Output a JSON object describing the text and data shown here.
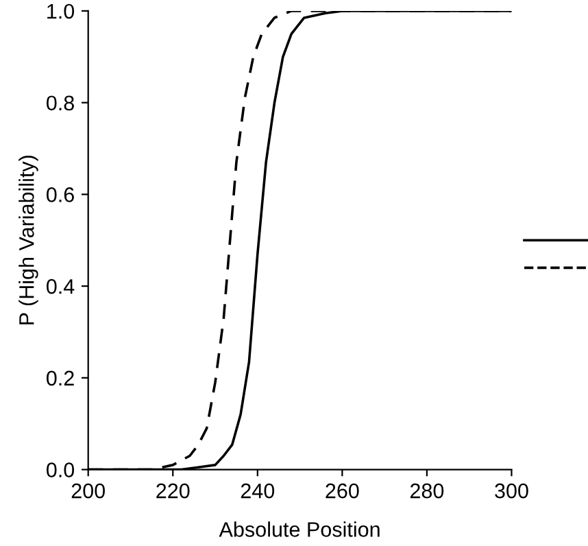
{
  "chart_data": {
    "type": "line",
    "xlabel": "Absolute Position",
    "ylabel": "P (High Variability)",
    "xlim": [
      200,
      300
    ],
    "ylim": [
      0,
      1
    ],
    "xticks": [
      200,
      220,
      240,
      260,
      280,
      300
    ],
    "yticks": [
      {
        "value": 0,
        "label": "0.0"
      },
      {
        "value": 0.2,
        "label": "0.2"
      },
      {
        "value": 0.4,
        "label": "0.4"
      },
      {
        "value": 0.6,
        "label": "0.6"
      },
      {
        "value": 0.8,
        "label": "0.8"
      },
      {
        "value": 1,
        "label": "1.0"
      }
    ],
    "grid": false,
    "marker": "none",
    "series": [
      {
        "color": "#000000",
        "line_style": "solid",
        "x": [
          200,
          222,
          226,
          230,
          232,
          234,
          236,
          238,
          240,
          242,
          244,
          246,
          248,
          251,
          256,
          260,
          300
        ],
        "values": [
          0,
          0,
          0.005,
          0.01,
          0.03,
          0.054,
          0.12,
          0.235,
          0.47,
          0.67,
          0.8,
          0.9,
          0.95,
          0.985,
          0.995,
          1.0,
          1.0
        ]
      },
      {
        "color": "#000000",
        "line_style": "dashed",
        "x": [
          200,
          215,
          220,
          224,
          226,
          228,
          230,
          232,
          233.5,
          235,
          237,
          239,
          241,
          244,
          248,
          300
        ],
        "values": [
          0,
          0,
          0.01,
          0.03,
          0.054,
          0.09,
          0.19,
          0.33,
          0.5,
          0.67,
          0.81,
          0.9,
          0.95,
          0.985,
          1.0,
          1.0
        ]
      }
    ]
  }
}
